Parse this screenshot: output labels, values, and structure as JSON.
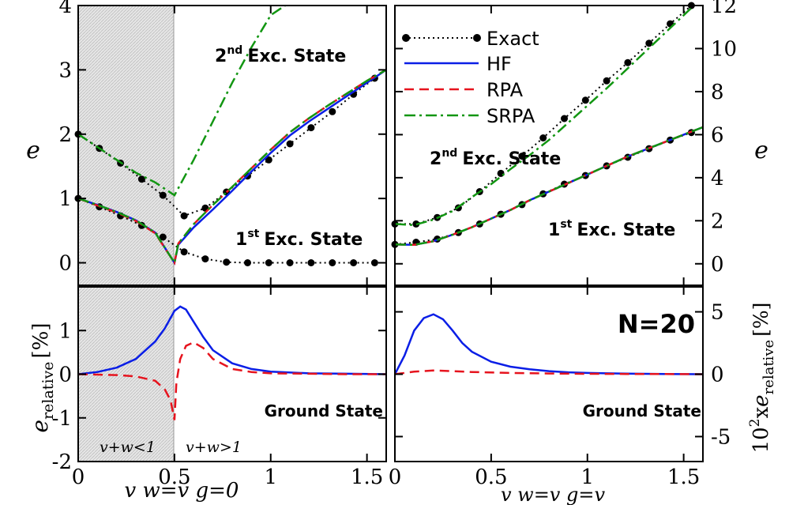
{
  "colors": {
    "exact": "#000000",
    "hf": "#0a1ee6",
    "rpa": "#e6141e",
    "srpa": "#129612",
    "shade": "#cfcfcf"
  },
  "legend": {
    "exact": "Exact",
    "hf": "HF",
    "rpa": "RPA",
    "srpa": "SRPA"
  },
  "labels": {
    "left_ylabel": "e",
    "right_ylabel": "e",
    "bottom_left_ylabel": "e",
    "bottom_left_ylabel_sub": "relative",
    "bottom_left_ylabel_unit": "[%]",
    "bottom_right_ylabel_pre": "10",
    "bottom_right_ylabel_sup": "2",
    "bottom_right_ylabel_x": "x",
    "bottom_right_ylabel": "e",
    "bottom_right_ylabel_sub": "relative",
    "bottom_right_ylabel_unit": "[%]",
    "xlabel_left": "v  w=v g=0",
    "xlabel_right": "v w=v g=v",
    "exc2_sup": "nd",
    "exc1_sup": "st",
    "exc2_num": "2",
    "exc1_num": "1",
    "exc_text": "Exc. State",
    "ground_left": "Ground State",
    "ground_right": "Ground State",
    "n_label": "N=20",
    "region_lt": "v+w<1",
    "region_gt": "v+w>1"
  },
  "chart_data": [
    {
      "type": "line",
      "panel": "top-left",
      "xlim": [
        0,
        1.6
      ],
      "ylim": [
        -0.35,
        4
      ],
      "yticks": [
        "0",
        "1",
        "2",
        "3",
        "4"
      ],
      "series": [
        {
          "name": "Exact",
          "x": [
            0,
            0.11,
            0.22,
            0.33,
            0.44,
            0.55,
            0.66,
            0.77,
            0.88,
            0.99,
            1.1,
            1.21,
            1.32,
            1.43,
            1.54
          ],
          "y": [
            1,
            0.87,
            0.73,
            0.58,
            0.4,
            0.17,
            0.06,
            0.01,
            0,
            0,
            0,
            0,
            0,
            0,
            0
          ]
        },
        {
          "name": "Exact",
          "x": [
            0,
            0.11,
            0.22,
            0.33,
            0.44,
            0.55,
            0.66,
            0.77,
            0.88,
            0.99,
            1.1,
            1.21,
            1.32,
            1.43,
            1.54
          ],
          "y": [
            2,
            1.78,
            1.55,
            1.3,
            1.05,
            0.73,
            0.85,
            1.1,
            1.35,
            1.6,
            1.85,
            2.1,
            2.35,
            2.62,
            2.87
          ]
        },
        {
          "name": "HF",
          "x": [
            0,
            0.1,
            0.2,
            0.3,
            0.4,
            0.5,
            0.52,
            0.6,
            0.7,
            0.8,
            0.9,
            1,
            1.1,
            1.2,
            1.3,
            1.4,
            1.5,
            1.6
          ],
          "y": [
            1,
            0.9,
            0.79,
            0.66,
            0.47,
            0,
            0.28,
            0.55,
            0.83,
            1.12,
            1.42,
            1.71,
            1.98,
            2.2,
            2.4,
            2.6,
            2.8,
            3
          ]
        },
        {
          "name": "RPA",
          "x": [
            0,
            0.1,
            0.2,
            0.3,
            0.4,
            0.5,
            0.52,
            0.6,
            0.7,
            0.8,
            0.9,
            1,
            1.1,
            1.2,
            1.3,
            1.4,
            1.5,
            1.6
          ],
          "y": [
            1,
            0.89,
            0.78,
            0.65,
            0.46,
            0,
            0.3,
            0.6,
            0.9,
            1.18,
            1.47,
            1.76,
            2.03,
            2.25,
            2.45,
            2.64,
            2.83,
            3
          ]
        },
        {
          "name": "SRPA",
          "x": [
            0,
            0.1,
            0.2,
            0.3,
            0.4,
            0.5,
            0.52,
            0.6,
            0.7,
            0.8,
            0.9,
            1,
            1.1,
            1.2,
            1.3,
            1.4,
            1.5,
            1.6
          ],
          "y": [
            1,
            0.9,
            0.79,
            0.66,
            0.47,
            0,
            0.3,
            0.6,
            0.9,
            1.18,
            1.47,
            1.76,
            2.03,
            2.25,
            2.45,
            2.64,
            2.83,
            3
          ]
        },
        {
          "name": "SRPA",
          "x": [
            0,
            0.1,
            0.2,
            0.3,
            0.4,
            0.5,
            0.6,
            0.7,
            0.8,
            0.9,
            1,
            1.1
          ],
          "y": [
            2,
            1.8,
            1.6,
            1.4,
            1.25,
            1.05,
            1.6,
            2.2,
            2.8,
            3.35,
            3.85,
            4.05
          ]
        }
      ]
    },
    {
      "type": "line",
      "panel": "top-right",
      "xlim": [
        0,
        1.6
      ],
      "ylim": [
        -1,
        12
      ],
      "yticks": [
        "0",
        "2",
        "4",
        "6",
        "8",
        "10",
        "12"
      ],
      "series": [
        {
          "name": "Exact",
          "x": [
            0,
            0.11,
            0.22,
            0.33,
            0.44,
            0.55,
            0.66,
            0.77,
            0.88,
            0.99,
            1.1,
            1.21,
            1.32,
            1.43,
            1.54
          ],
          "y": [
            0.9,
            1,
            1.15,
            1.45,
            1.85,
            2.3,
            2.75,
            3.25,
            3.7,
            4.1,
            4.55,
            4.95,
            5.35,
            5.75,
            6.1
          ]
        },
        {
          "name": "Exact",
          "x": [
            0,
            0.11,
            0.22,
            0.33,
            0.44,
            0.55,
            0.66,
            0.77,
            0.88,
            0.99,
            1.1,
            1.21,
            1.32,
            1.43,
            1.54
          ],
          "y": [
            1.85,
            1.85,
            2.15,
            2.6,
            3.35,
            4.2,
            5,
            5.85,
            6.75,
            7.6,
            8.5,
            9.35,
            10.25,
            11.15,
            12
          ]
        },
        {
          "name": "HF",
          "x": [
            0,
            0.1,
            0.2,
            0.3,
            0.4,
            0.5,
            0.6,
            0.7,
            0.8,
            0.9,
            1,
            1.1,
            1.2,
            1.3,
            1.4,
            1.5,
            1.6
          ],
          "y": [
            0.9,
            0.88,
            1.05,
            1.35,
            1.7,
            2.1,
            2.5,
            2.95,
            3.35,
            3.75,
            4.15,
            4.55,
            4.95,
            5.3,
            5.65,
            6,
            6.35
          ]
        },
        {
          "name": "RPA",
          "x": [
            0,
            0.1,
            0.2,
            0.3,
            0.4,
            0.5,
            0.6,
            0.7,
            0.8,
            0.9,
            1,
            1.1,
            1.2,
            1.3,
            1.4,
            1.5,
            1.6
          ],
          "y": [
            0.9,
            0.88,
            1.05,
            1.35,
            1.7,
            2.1,
            2.5,
            2.95,
            3.35,
            3.75,
            4.15,
            4.55,
            4.95,
            5.3,
            5.65,
            6,
            6.35
          ]
        },
        {
          "name": "SRPA",
          "x": [
            0,
            0.1,
            0.2,
            0.3,
            0.4,
            0.5,
            0.6,
            0.7,
            0.8,
            0.9,
            1,
            1.1,
            1.2,
            1.3,
            1.4,
            1.5,
            1.6
          ],
          "y": [
            0.9,
            0.88,
            1.05,
            1.35,
            1.7,
            2.1,
            2.5,
            2.95,
            3.35,
            3.75,
            4.15,
            4.55,
            4.95,
            5.3,
            5.65,
            6,
            6.35
          ]
        },
        {
          "name": "SRPA",
          "x": [
            0,
            0.1,
            0.2,
            0.3,
            0.4,
            0.5,
            0.6,
            0.7,
            0.8,
            0.9,
            1,
            1.1,
            1.2,
            1.3,
            1.4,
            1.5,
            1.6
          ],
          "y": [
            1.85,
            1.8,
            2.05,
            2.45,
            3.1,
            3.7,
            4.4,
            5.05,
            5.75,
            6.55,
            7.35,
            8.15,
            9,
            9.85,
            10.7,
            11.55,
            12.4
          ]
        }
      ]
    },
    {
      "type": "line",
      "panel": "bottom-left",
      "xlim": [
        0,
        1.6
      ],
      "ylim": [
        -2,
        2
      ],
      "yticks": [
        "-2",
        "-1",
        "0",
        "1"
      ],
      "xticks": [
        "0",
        "0.5",
        "1",
        "1.5"
      ],
      "series": [
        {
          "name": "HF",
          "x": [
            0,
            0.1,
            0.2,
            0.3,
            0.4,
            0.45,
            0.5,
            0.53,
            0.56,
            0.6,
            0.65,
            0.7,
            0.8,
            0.9,
            1,
            1.2,
            1.4,
            1.6
          ],
          "y": [
            0,
            0.05,
            0.15,
            0.35,
            0.75,
            1.05,
            1.45,
            1.55,
            1.48,
            1.2,
            0.85,
            0.55,
            0.25,
            0.12,
            0.06,
            0.02,
            0.01,
            0
          ]
        },
        {
          "name": "RPA",
          "x": [
            0,
            0.2,
            0.3,
            0.4,
            0.45,
            0.48,
            0.5,
            0.51,
            0.53,
            0.56,
            0.6,
            0.65,
            0.7,
            0.8,
            0.9,
            1,
            1.2,
            1.4,
            1.6
          ],
          "y": [
            0,
            -0.02,
            -0.05,
            -0.15,
            -0.35,
            -0.6,
            -1.05,
            -0.2,
            0.35,
            0.65,
            0.73,
            0.6,
            0.35,
            0.12,
            0.05,
            0.02,
            0.01,
            0,
            0
          ]
        }
      ]
    },
    {
      "type": "line",
      "panel": "bottom-right",
      "xlim": [
        0,
        1.6
      ],
      "ylim": [
        -7,
        7
      ],
      "yticks": [
        "-5",
        "0",
        "5"
      ],
      "xticks": [
        "0",
        "0.5",
        "1",
        "1.5"
      ],
      "series": [
        {
          "name": "HF",
          "x": [
            0,
            0.05,
            0.1,
            0.15,
            0.2,
            0.25,
            0.3,
            0.35,
            0.4,
            0.5,
            0.6,
            0.7,
            0.8,
            0.9,
            1,
            1.2,
            1.4,
            1.6
          ],
          "y": [
            0,
            1.5,
            3.5,
            4.5,
            4.8,
            4.4,
            3.5,
            2.5,
            1.8,
            1,
            0.6,
            0.4,
            0.25,
            0.15,
            0.1,
            0.05,
            0.02,
            0
          ]
        },
        {
          "name": "RPA",
          "x": [
            0,
            0.1,
            0.2,
            0.3,
            0.4,
            0.6,
            0.8,
            1,
            1.2,
            1.4,
            1.6
          ],
          "y": [
            0,
            0.2,
            0.3,
            0.25,
            0.18,
            0.1,
            0.06,
            0.03,
            0.02,
            0.01,
            0
          ]
        }
      ]
    }
  ]
}
